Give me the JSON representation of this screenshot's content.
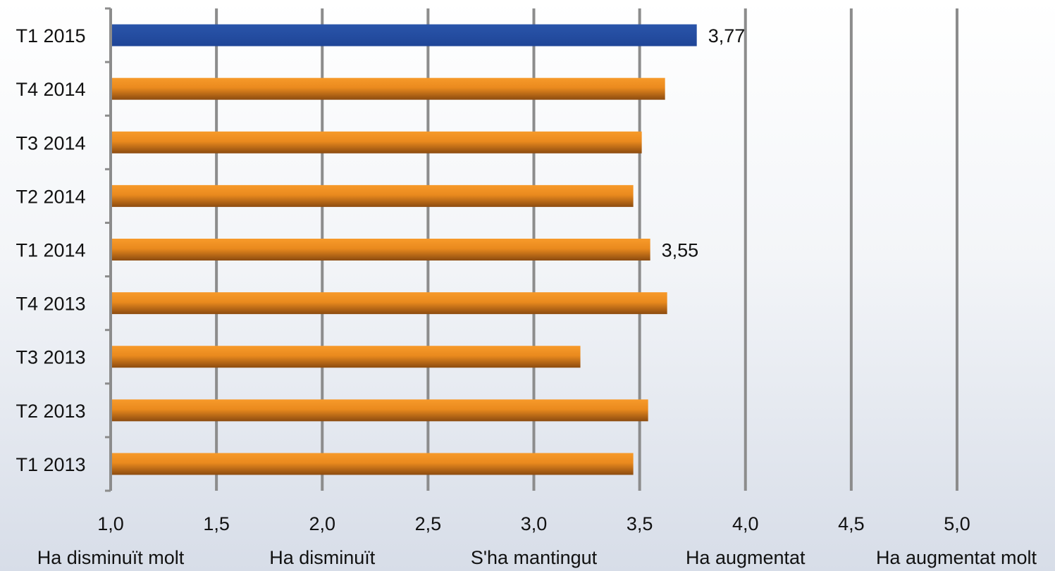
{
  "chart_data": {
    "type": "bar",
    "orientation": "horizontal",
    "categories": [
      "T1 2015",
      "T4 2014",
      "T3 2014",
      "T2 2014",
      "T1 2014",
      "T4 2013",
      "T3 2013",
      "T2 2013",
      "T1 2013"
    ],
    "values": [
      3.77,
      3.62,
      3.51,
      3.47,
      3.55,
      3.63,
      3.22,
      3.54,
      3.47
    ],
    "data_labels": {
      "T1 2015": "3,77",
      "T1 2014": "3,55"
    },
    "xlim": [
      1.0,
      5.0
    ],
    "xticks": [
      1.0,
      1.5,
      2.0,
      2.5,
      3.0,
      3.5,
      4.0,
      4.5,
      5.0
    ],
    "xtick_labels": [
      "1,0",
      "1,5",
      "2,0",
      "2,5",
      "3,0",
      "3,5",
      "4,0",
      "4,5",
      "5,0"
    ],
    "scale_labels": [
      {
        "value": 1.0,
        "text": "Ha disminuït molt"
      },
      {
        "value": 2.0,
        "text": "Ha disminuït"
      },
      {
        "value": 3.0,
        "text": "S'ha mantingut"
      },
      {
        "value": 4.0,
        "text": "Ha augmentat"
      },
      {
        "value": 5.0,
        "text": "Ha augmentat molt"
      }
    ],
    "grid": true,
    "colors": {
      "highlight_bar": "#1f4597",
      "bar_top": "#f79a2a",
      "bar_bottom": "#8c4b10",
      "gridline": "#8c8c8c",
      "text": "#111111"
    },
    "highlight_category": "T1 2015"
  }
}
